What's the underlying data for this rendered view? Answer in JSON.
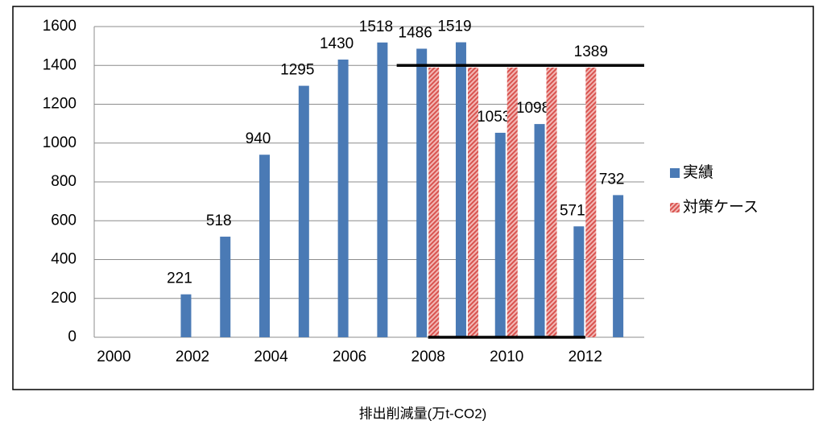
{
  "chart_data": {
    "type": "bar",
    "x": [
      2000,
      2001,
      2002,
      2003,
      2004,
      2005,
      2006,
      2007,
      2008,
      2009,
      2010,
      2011,
      2012,
      2013
    ],
    "xticks": [
      2000,
      2002,
      2004,
      2006,
      2008,
      2010,
      2012
    ],
    "series": [
      {
        "name": "実績",
        "color": "#4a7ab5",
        "values": [
          null,
          null,
          221,
          518,
          940,
          1295,
          1430,
          1518,
          1486,
          1519,
          1053,
          1098,
          571,
          732
        ]
      },
      {
        "name": "対策ケース",
        "color": "#d9534f",
        "pattern": "hatch",
        "values": [
          null,
          null,
          null,
          null,
          null,
          null,
          null,
          null,
          1389,
          1389,
          1389,
          1389,
          1389,
          null
        ],
        "value_labels": [
          null,
          null,
          null,
          null,
          null,
          null,
          null,
          null,
          null,
          null,
          null,
          null,
          "1389",
          null
        ]
      }
    ],
    "ylim": [
      0,
      1600
    ],
    "yticks": [
      0,
      200,
      400,
      600,
      800,
      1000,
      1200,
      1400,
      1600
    ],
    "grid": true,
    "reference_lines": [
      {
        "value": 1400,
        "from": 2007.2,
        "to": 2013.5
      },
      {
        "value": 0,
        "from": 2008,
        "to": 2012
      }
    ],
    "legend": "right",
    "caption": "排出削減量(万t-CO2)"
  }
}
